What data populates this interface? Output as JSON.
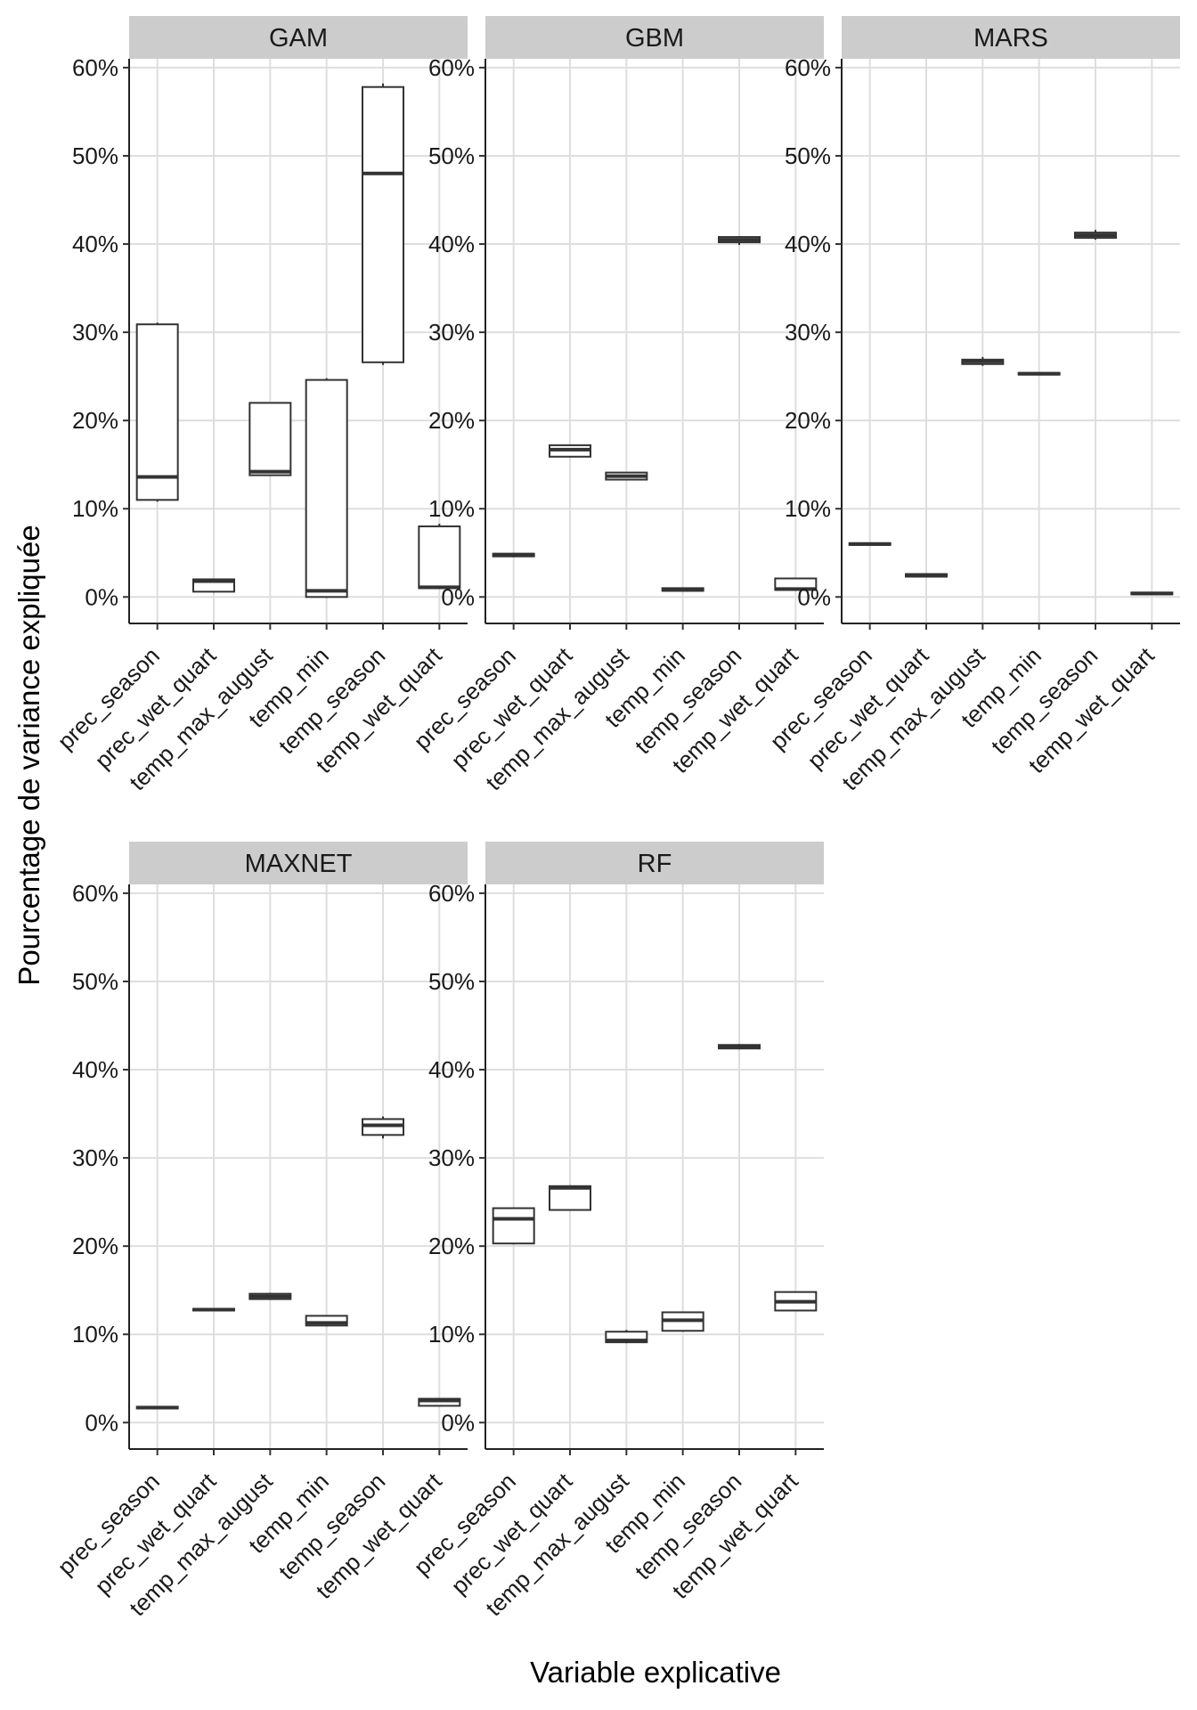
{
  "chart_data": {
    "type": "boxplot",
    "xlabel": "Variable explicative",
    "ylabel": "Pourcentage de variance expliquée",
    "ylim": [
      -3,
      61
    ],
    "yticks": [
      0,
      10,
      20,
      30,
      40,
      50,
      60
    ],
    "ytick_labels": [
      "0%",
      "10%",
      "20%",
      "30%",
      "40%",
      "50%",
      "60%"
    ],
    "categories": [
      "prec_season",
      "prec_wet_quart",
      "temp_max_august",
      "temp_min",
      "temp_season",
      "temp_wet_quart"
    ],
    "panels": [
      {
        "name": "GAM",
        "boxes": [
          {
            "min": 10.8,
            "q1": 11.0,
            "median": 13.6,
            "q3": 30.9,
            "max": 31.1
          },
          {
            "min": 0.5,
            "q1": 0.6,
            "median": 1.8,
            "q3": 2.0,
            "max": 2.0
          },
          {
            "min": 13.7,
            "q1": 13.8,
            "median": 14.2,
            "q3": 22.0,
            "max": 22.0
          },
          {
            "min": -0.1,
            "q1": 0.0,
            "median": 0.7,
            "q3": 24.6,
            "max": 24.8
          },
          {
            "min": 26.3,
            "q1": 26.6,
            "median": 48.0,
            "q3": 57.8,
            "max": 58.2
          },
          {
            "min": 0.9,
            "q1": 1.0,
            "median": 1.1,
            "q3": 8.0,
            "max": 8.3
          }
        ]
      },
      {
        "name": "GBM",
        "boxes": [
          {
            "min": 4.5,
            "q1": 4.6,
            "median": 4.8,
            "q3": 4.9,
            "max": 5.0
          },
          {
            "min": 15.8,
            "q1": 15.9,
            "median": 16.7,
            "q3": 17.2,
            "max": 17.2
          },
          {
            "min": 13.2,
            "q1": 13.3,
            "median": 13.7,
            "q3": 14.1,
            "max": 14.1
          },
          {
            "min": 0.6,
            "q1": 0.7,
            "median": 0.8,
            "q3": 1.0,
            "max": 1.0
          },
          {
            "min": 39.9,
            "q1": 40.2,
            "median": 40.5,
            "q3": 40.8,
            "max": 40.9
          },
          {
            "min": 0.7,
            "q1": 0.8,
            "median": 0.9,
            "q3": 2.1,
            "max": 2.1
          }
        ]
      },
      {
        "name": "MARS",
        "boxes": [
          {
            "min": 5.9,
            "q1": 5.9,
            "median": 6.0,
            "q3": 6.1,
            "max": 6.1
          },
          {
            "min": 2.3,
            "q1": 2.3,
            "median": 2.4,
            "q3": 2.6,
            "max": 2.6
          },
          {
            "min": 26.2,
            "q1": 26.4,
            "median": 26.7,
            "q3": 26.9,
            "max": 27.2
          },
          {
            "min": 25.2,
            "q1": 25.2,
            "median": 25.3,
            "q3": 25.4,
            "max": 25.4
          },
          {
            "min": 40.5,
            "q1": 40.7,
            "median": 41.0,
            "q3": 41.3,
            "max": 41.6
          },
          {
            "min": 0.3,
            "q1": 0.3,
            "median": 0.4,
            "q3": 0.5,
            "max": 0.5
          }
        ]
      },
      {
        "name": "MAXNET",
        "boxes": [
          {
            "min": 1.6,
            "q1": 1.6,
            "median": 1.7,
            "q3": 1.8,
            "max": 1.8
          },
          {
            "min": 12.7,
            "q1": 12.7,
            "median": 12.8,
            "q3": 12.9,
            "max": 12.9
          },
          {
            "min": 13.9,
            "q1": 14.0,
            "median": 14.3,
            "q3": 14.6,
            "max": 14.7
          },
          {
            "min": 10.9,
            "q1": 11.0,
            "median": 11.3,
            "q3": 12.1,
            "max": 12.1
          },
          {
            "min": 32.2,
            "q1": 32.6,
            "median": 33.7,
            "q3": 34.4,
            "max": 34.7
          },
          {
            "min": 1.9,
            "q1": 1.9,
            "median": 2.5,
            "q3": 2.7,
            "max": 2.8
          }
        ]
      },
      {
        "name": "RF",
        "boxes": [
          {
            "min": 20.2,
            "q1": 20.3,
            "median": 23.1,
            "q3": 24.3,
            "max": 24.3
          },
          {
            "min": 24.1,
            "q1": 24.1,
            "median": 26.6,
            "q3": 26.8,
            "max": 26.9
          },
          {
            "min": 9.0,
            "q1": 9.1,
            "median": 9.3,
            "q3": 10.3,
            "max": 10.5
          },
          {
            "min": 10.3,
            "q1": 10.4,
            "median": 11.6,
            "q3": 12.5,
            "max": 12.5
          },
          {
            "min": 42.3,
            "q1": 42.4,
            "median": 42.6,
            "q3": 42.8,
            "max": 42.9
          },
          {
            "min": 12.6,
            "q1": 12.7,
            "median": 13.7,
            "q3": 14.8,
            "max": 14.8
          }
        ]
      }
    ]
  }
}
